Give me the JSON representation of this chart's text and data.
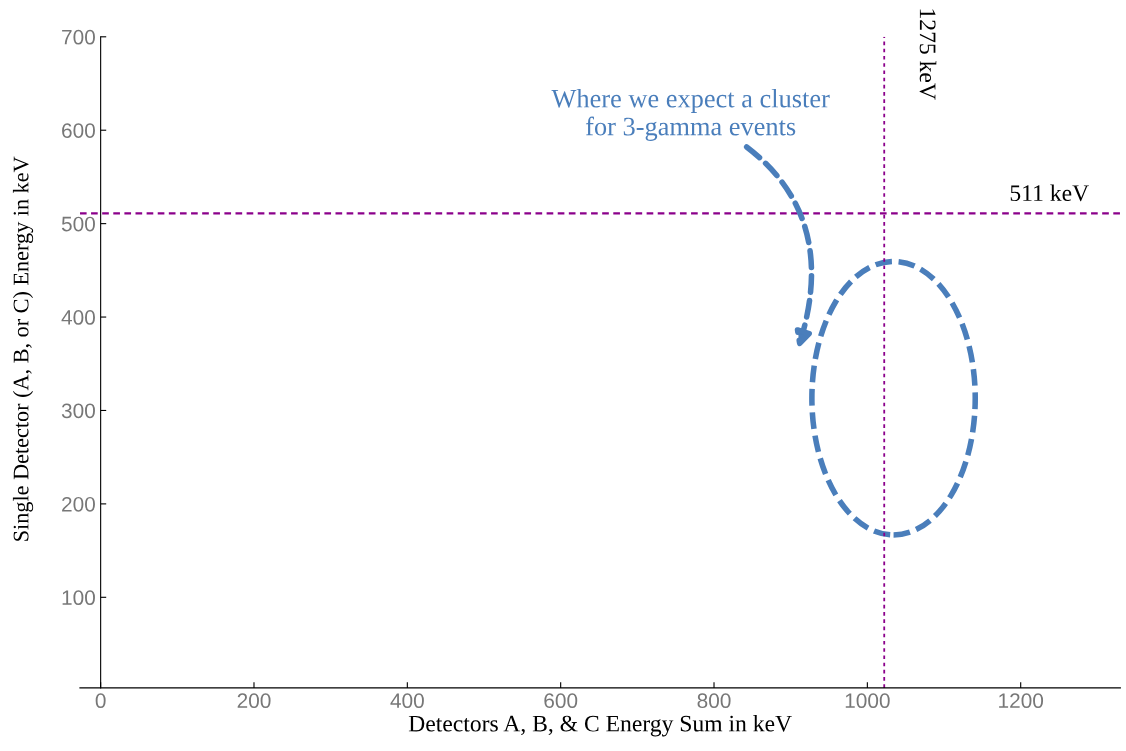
{
  "chart_data": {
    "type": "scatter",
    "xlabel": "Detectors A, B, & C Energy Sum in keV",
    "ylabel": "Single Detector (A, B, or C) Energy in keV",
    "xlim": [
      -27,
      1330
    ],
    "ylim": [
      3,
      700
    ],
    "xticks": [
      0,
      200,
      400,
      600,
      800,
      1000,
      1200
    ],
    "yticks": [
      100,
      200,
      300,
      400,
      500,
      600,
      700
    ],
    "ref_lines": [
      {
        "axis": "y",
        "value": 511,
        "label": "511 keV",
        "color": "#8b008b",
        "line_style": "dashed"
      },
      {
        "axis": "x",
        "value": 1022,
        "label": "1275 keV",
        "color": "#8b008b",
        "line_style": "dotted"
      }
    ],
    "annotations": [
      "Where we expect a cluster\nfor 3-gamma events"
    ],
    "grid": false,
    "legend": false
  }
}
